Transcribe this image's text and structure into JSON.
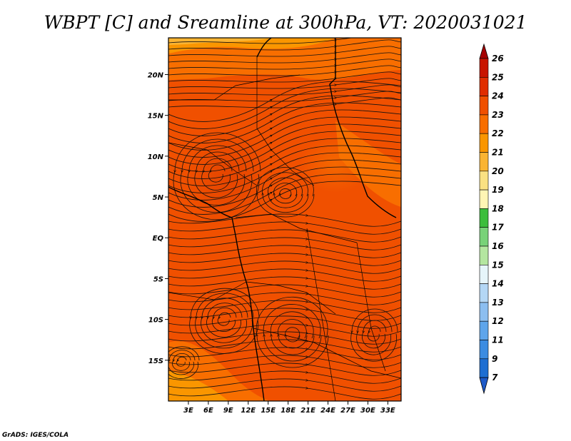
{
  "title": "WBPT [C] and Sreamline at 300hPa, VT: 2020031021",
  "credit": "GrADS: IGES/COLA",
  "map": {
    "lon_range": [
      0,
      35
    ],
    "lat_range": [
      -20,
      24.5
    ],
    "lon_ticks": [
      "3E",
      "6E",
      "9E",
      "12E",
      "15E",
      "18E",
      "21E",
      "24E",
      "27E",
      "30E",
      "33E"
    ],
    "lat_ticks": [
      "20N",
      "15N",
      "10N",
      "5N",
      "EQ",
      "5S",
      "10S",
      "15S"
    ],
    "background_field": "wet-bulb potential temperature, mostly 22–24 C",
    "overlay": "streamlines"
  },
  "colorbar": {
    "labels": [
      "26",
      "25",
      "24",
      "23",
      "22",
      "21",
      "20",
      "19",
      "18",
      "17",
      "16",
      "15",
      "14",
      "13",
      "12",
      "11",
      "9",
      "7"
    ],
    "colors": [
      "#a50000",
      "#c81400",
      "#e02d00",
      "#f05000",
      "#f86e00",
      "#fa9600",
      "#fab432",
      "#fae182",
      "#fff5b4",
      "#3cbe3c",
      "#78d278",
      "#b4e6a0",
      "#e6f5fa",
      "#b4d7f5",
      "#8cbef0",
      "#5ea5eb",
      "#3c8ce1",
      "#1e6ed2",
      "#1e5ac8"
    ]
  }
}
